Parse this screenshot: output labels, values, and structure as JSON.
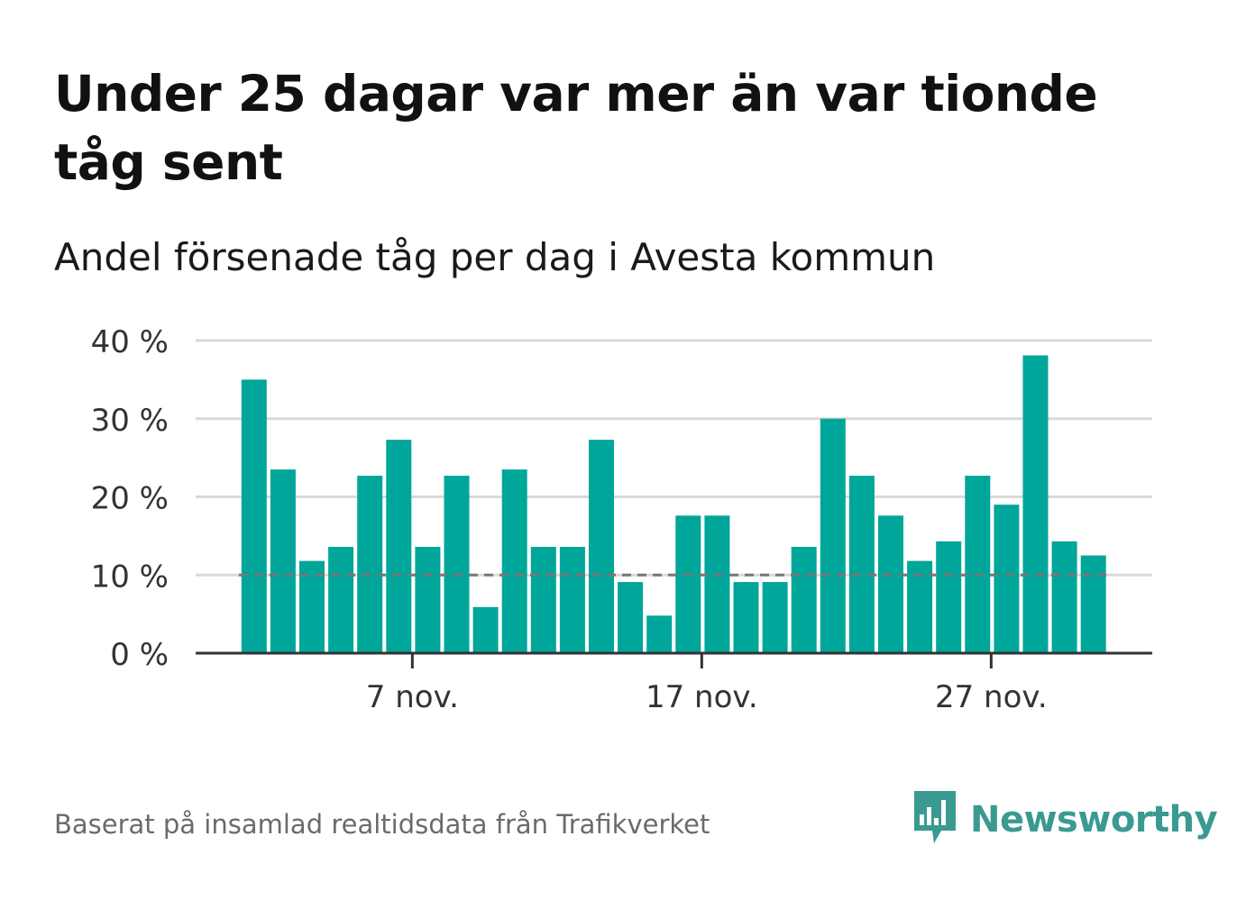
{
  "title": "Under 25 dagar var mer än var tionde tåg sent",
  "subtitle": "Andel försenade tåg per dag i Avesta kommun",
  "footer": "Baserat på insamlad realtidsdata från Trafikverket",
  "brand": {
    "name": "Newsworthy",
    "icon": "newsworthy-logo-icon",
    "color": "#3a9a91"
  },
  "colors": {
    "bar": "#00a69a",
    "grid": "#d9d9d9",
    "axis": "#333333",
    "reference_line": "#777777"
  },
  "chart_data": {
    "type": "bar",
    "x": [
      1,
      2,
      3,
      4,
      5,
      6,
      7,
      8,
      9,
      10,
      11,
      12,
      13,
      14,
      15,
      16,
      17,
      18,
      19,
      20,
      21,
      22,
      23,
      24,
      25,
      26,
      27,
      28,
      29,
      30
    ],
    "values": [
      35,
      23.5,
      11.8,
      13.6,
      22.7,
      27.3,
      13.6,
      22.7,
      5.9,
      23.5,
      13.6,
      13.6,
      27.3,
      9.1,
      4.8,
      17.6,
      17.6,
      9.1,
      9.1,
      13.6,
      30,
      22.7,
      17.6,
      11.8,
      14.3,
      22.7,
      19,
      38.1,
      14.3,
      12.5
    ],
    "x_ticks": [
      7,
      17,
      27
    ],
    "x_tick_labels": [
      "7 nov.",
      "17 nov.",
      "27 nov."
    ],
    "y_ticks": [
      0,
      10,
      20,
      30,
      40
    ],
    "y_tick_labels": [
      "0 %",
      "10 %",
      "20 %",
      "30 %",
      "40 %"
    ],
    "ylim": [
      0,
      40
    ],
    "reference_line": 10,
    "grid": true,
    "xlabel": "",
    "ylabel": ""
  }
}
